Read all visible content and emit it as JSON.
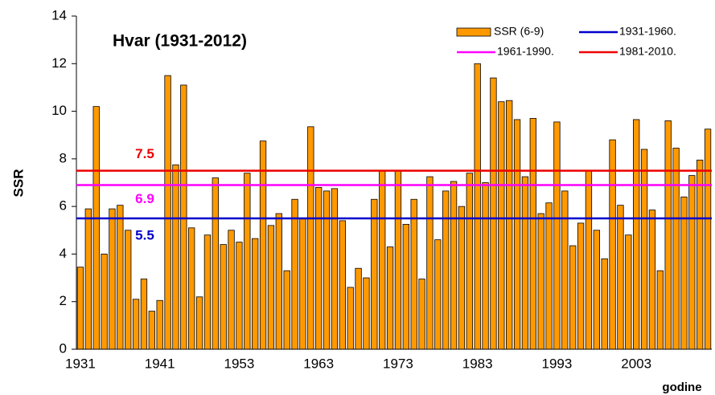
{
  "chart_data": {
    "type": "bar",
    "title": "Hvar (1931-2012)",
    "x_label": "godine",
    "y_label": "SSR",
    "categories": [
      "1931",
      null,
      null,
      null,
      null,
      null,
      null,
      null,
      null,
      null,
      "1941",
      null,
      null,
      null,
      null,
      null,
      null,
      null,
      null,
      null,
      "1953",
      null,
      null,
      null,
      null,
      null,
      null,
      null,
      null,
      null,
      "1963",
      null,
      null,
      null,
      null,
      null,
      null,
      null,
      null,
      null,
      "1973",
      null,
      null,
      null,
      null,
      null,
      null,
      null,
      null,
      null,
      "1983",
      null,
      null,
      null,
      null,
      null,
      null,
      null,
      null,
      null,
      "1993",
      null,
      null,
      null,
      null,
      null,
      null,
      null,
      null,
      null,
      "2003",
      null,
      null,
      null,
      null,
      null,
      null,
      null,
      null,
      null
    ],
    "series": [
      {
        "name": "SSR (6-9)",
        "color": "#ff9900",
        "values": [
          3.45,
          5.9,
          10.2,
          4.0,
          5.9,
          6.05,
          5.0,
          2.1,
          2.95,
          1.6,
          2.05,
          11.5,
          7.75,
          11.1,
          5.1,
          2.2,
          4.8,
          7.2,
          4.4,
          5.0,
          4.5,
          7.4,
          4.65,
          8.75,
          5.2,
          5.7,
          3.3,
          6.3,
          5.5,
          9.35,
          6.8,
          6.65,
          6.75,
          5.4,
          2.6,
          3.4,
          3.0,
          6.3,
          7.5,
          4.3,
          7.5,
          5.25,
          6.3,
          2.95,
          7.25,
          4.6,
          6.65,
          7.05,
          6.0,
          7.4,
          12.0,
          7.0,
          11.4,
          10.4,
          10.45,
          9.65,
          7.25,
          9.7,
          5.7,
          6.15,
          9.55,
          6.65,
          4.35,
          5.3,
          7.5,
          5.0,
          3.8,
          8.8,
          6.05,
          4.8,
          9.65,
          8.4,
          5.85,
          3.3,
          9.6,
          8.45,
          6.4,
          7.3,
          7.95,
          9.25
        ]
      }
    ],
    "reference_lines": [
      {
        "name": "1931-1960.",
        "color": "#0000cc",
        "value": 5.5
      },
      {
        "name": "1961-1990.",
        "color": "#ff00ff",
        "value": 6.9
      },
      {
        "name": "1981-2010.",
        "color": "#ee0000",
        "value": 7.5
      }
    ],
    "ylim": [
      0,
      14
    ],
    "yticks": [
      0,
      2,
      4,
      6,
      8,
      10,
      12,
      14
    ]
  }
}
